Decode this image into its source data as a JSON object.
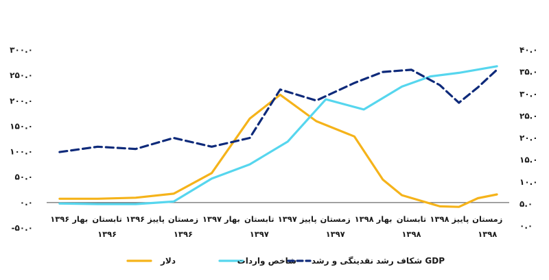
{
  "chart_data": {
    "type": "line",
    "categories": [
      "بهار ۱۳۹۶",
      "تابستان",
      "پاییز ۱۳۹۶",
      "زمستان",
      "بهار ۱۳۹۷",
      "تابستان",
      "پاییز ۱۳۹۷",
      "زمستان",
      "بهار ۱۳۹۸",
      "تابستان",
      "پاییز ۱۳۹۸",
      "زمستان"
    ],
    "year_labels": [
      {
        "label": "۱۳۹۶",
        "under_category": 2
      },
      {
        "label": "۱۳۹۶",
        "under_category": 4
      },
      {
        "label": "۱۳۹۷",
        "under_category": 6
      },
      {
        "label": "۱۳۹۷",
        "under_category": 8
      },
      {
        "label": "۱۳۹۸",
        "under_category": 10
      },
      {
        "label": "۱۳۹۸",
        "under_category": 12
      }
    ],
    "left_axis": {
      "ylim": [
        -50,
        300
      ],
      "ticks": [
        "۳۰۰.۰",
        "۲۵۰.۰",
        "۲۰۰.۰",
        "۱۵۰.۰",
        "۱۰۰.۰",
        "۵۰.۰",
        "۰.۰",
        "-۵۰.۰"
      ],
      "tick_values": [
        300,
        250,
        200,
        150,
        100,
        50,
        0,
        -50
      ]
    },
    "right_axis": {
      "ylim": [
        0,
        40
      ],
      "ticks": [
        "۴۰.۰",
        "۳۵.۰",
        "۳۰.۰",
        "۲۵.۰",
        "۲۰.۰",
        "۱۵.۰",
        "۱۰.۰",
        "۵.۰",
        "۰.۰"
      ],
      "tick_values": [
        40,
        35,
        30,
        25,
        20,
        15,
        10,
        5,
        0
      ]
    },
    "x_positions": [
      1,
      2,
      3,
      4,
      5,
      6,
      7,
      8,
      9,
      10,
      11,
      12,
      13,
      14,
      15,
      16,
      17,
      18,
      19,
      20,
      21,
      22,
      23,
      24
    ],
    "series": [
      {
        "name": "دلار",
        "axis": "left",
        "color": "#F5B31A",
        "dash": false,
        "x": [
          1.0,
          3.0,
          5.0,
          7.0,
          9.0,
          11.0,
          12.6,
          14.5,
          16.5,
          18.0,
          19.0,
          21.0,
          22.0,
          23.0,
          24.0
        ],
        "values": [
          7.5,
          7.5,
          9.5,
          17.5,
          58.0,
          165.0,
          212.0,
          160.0,
          130.0,
          45.0,
          14.5,
          -7.5,
          -8.5,
          8.5,
          16.0
        ]
      },
      {
        "name": "شاخص واردات",
        "axis": "left",
        "color": "#56D6EE",
        "dash": false,
        "x": [
          1.0,
          3.0,
          5.0,
          7.0,
          9.0,
          11.0,
          13.0,
          15.0,
          17.0,
          19.0,
          20.5,
          22.0,
          24.0
        ],
        "values": [
          -2.0,
          -3.0,
          -3.0,
          2.0,
          47.0,
          75.0,
          120.0,
          203.0,
          183.0,
          228.0,
          248.0,
          255.0,
          268.0
        ]
      },
      {
        "name": "شکاف رشد نقدینگی و رشد GDP",
        "axis": "right",
        "color": "#0E2A7A",
        "dash": true,
        "x": [
          1.0,
          3.0,
          5.0,
          7.0,
          9.0,
          11.0,
          12.6,
          14.5,
          16.5,
          18.0,
          19.5,
          21.0,
          22.0,
          23.0,
          24.0
        ],
        "values": [
          16.8,
          18.0,
          17.5,
          20.0,
          18.0,
          20.0,
          31.0,
          28.5,
          32.5,
          35.0,
          35.5,
          32.0,
          28.0,
          31.5,
          35.5
        ]
      }
    ],
    "legend": [
      {
        "label": "دلار",
        "color": "#F5B31A",
        "dash": false
      },
      {
        "label": "شاخص واردات",
        "color": "#56D6EE",
        "dash": false
      },
      {
        "label": "شکاف رشد نقدینگی و رشد GDP",
        "color": "#0E2A7A",
        "dash": true
      }
    ],
    "grid": false,
    "legend_position": "bottom"
  }
}
